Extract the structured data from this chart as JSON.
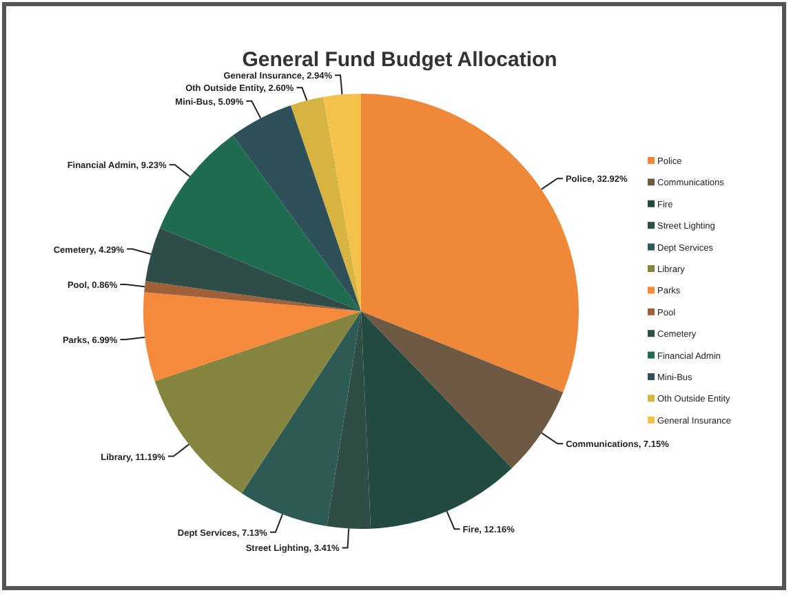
{
  "chart_data": {
    "type": "pie",
    "title": "General Fund Budget Allocation",
    "categories": [
      "Police",
      "Communications",
      "Fire",
      "Street Lighting",
      "Dept Services",
      "Library",
      "Parks",
      "Pool",
      "Cemetery",
      "Financial Admin",
      "Mini-Bus",
      "Oth Outside Entity",
      "General Insurance"
    ],
    "values": [
      32.92,
      7.15,
      12.16,
      3.41,
      7.13,
      11.19,
      6.99,
      0.86,
      4.29,
      9.23,
      5.09,
      2.6,
      2.94
    ],
    "colors": [
      "#f0883a",
      "#6e5a44",
      "#234a40",
      "#2f4d44",
      "#2d5a55",
      "#85853f",
      "#f58a3c",
      "#a0603a",
      "#2e4d48",
      "#1f6b50",
      "#2e5058",
      "#d7b342",
      "#f4c24a"
    ],
    "value_labels": [
      "Police, 32.92%",
      "Communications, 7.15%",
      "Fire, 12.16%",
      "Street Lighting, 3.41%",
      "Dept Services, 7.13%",
      "Library, 11.19%",
      "Parks, 6.99%",
      "Pool, 0.86%",
      "Cemetery, 4.29%",
      "Financial Admin, 9.23%",
      "Mini-Bus, 5.09%",
      "Oth Outside Entity, 2.60%",
      "General Insurance, 2.94%"
    ],
    "legend": "right"
  }
}
